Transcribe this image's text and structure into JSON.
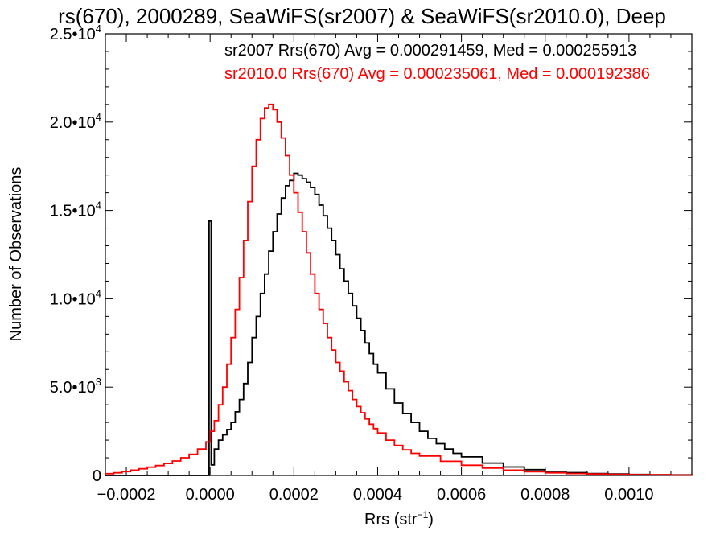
{
  "chart_data": {
    "type": "histogram-step",
    "title": "rs(670), 2000289, SeaWiFS(sr2007) & SeaWiFS(sr2010.0), Deep",
    "xlabel": "Rrs (str",
    "xlabel_sup": "−1",
    "xlabel_close": ")",
    "ylabel": "Number of Observations",
    "xlim": [
      -0.00025,
      0.00115
    ],
    "ylim": [
      0,
      25000
    ],
    "xticks": [
      -0.0002,
      0.0,
      0.0002,
      0.0004,
      0.0006,
      0.0008,
      0.001
    ],
    "xtick_labels": [
      "−0.0002",
      "0.0000",
      "0.0002",
      "0.0004",
      "0.0006",
      "0.0008",
      "0.0010"
    ],
    "yticks": [
      0,
      5000,
      10000,
      15000,
      20000,
      25000
    ],
    "ytick_labels": [
      {
        "base": "0",
        "exp": ""
      },
      {
        "base": "5.0•10",
        "exp": "3"
      },
      {
        "base": "1.0•10",
        "exp": "4"
      },
      {
        "base": "1.5•10",
        "exp": "4"
      },
      {
        "base": "2.0•10",
        "exp": "4"
      },
      {
        "base": "2.5•10",
        "exp": "4"
      }
    ],
    "grid": false,
    "legend_position": "top-right",
    "series": [
      {
        "name": "sr2007",
        "legend_text": "sr2007 Rrs(670) Avg = 0.000291459, Med = 0.000255913",
        "color": "#000000",
        "points": [
          [
            -0.00025,
            0
          ],
          [
            -2.5e-06,
            0
          ],
          [
            -2.5e-06,
            14400
          ],
          [
            2.5e-06,
            14400
          ],
          [
            2.5e-06,
            600
          ],
          [
            1e-05,
            1500
          ],
          [
            2e-05,
            2000
          ],
          [
            3e-05,
            2300
          ],
          [
            4e-05,
            2600
          ],
          [
            5e-05,
            3000
          ],
          [
            6e-05,
            3600
          ],
          [
            7e-05,
            4300
          ],
          [
            8e-05,
            5200
          ],
          [
            9e-05,
            6400
          ],
          [
            0.0001,
            7800
          ],
          [
            0.00011,
            9000
          ],
          [
            0.00012,
            10300
          ],
          [
            0.00013,
            11400
          ],
          [
            0.00014,
            12700
          ],
          [
            0.00015,
            13800
          ],
          [
            0.00016,
            14800
          ],
          [
            0.00017,
            15700
          ],
          [
            0.00018,
            16400
          ],
          [
            0.00019,
            16700
          ],
          [
            0.0002,
            17100
          ],
          [
            0.00021,
            17000
          ],
          [
            0.00022,
            16800
          ],
          [
            0.00023,
            16600
          ],
          [
            0.00024,
            16300
          ],
          [
            0.00025,
            15900
          ],
          [
            0.00026,
            15300
          ],
          [
            0.00027,
            14700
          ],
          [
            0.00028,
            14000
          ],
          [
            0.00029,
            13300
          ],
          [
            0.0003,
            12500
          ],
          [
            0.00031,
            11700
          ],
          [
            0.00032,
            11000
          ],
          [
            0.00033,
            10300
          ],
          [
            0.00034,
            9600
          ],
          [
            0.00035,
            8900
          ],
          [
            0.00036,
            8200
          ],
          [
            0.00037,
            7500
          ],
          [
            0.00038,
            6900
          ],
          [
            0.00039,
            6300
          ],
          [
            0.0004,
            5800
          ],
          [
            0.00042,
            4900
          ],
          [
            0.00044,
            4100
          ],
          [
            0.00046,
            3500
          ],
          [
            0.00048,
            3000
          ],
          [
            0.0005,
            2500
          ],
          [
            0.00052,
            2100
          ],
          [
            0.00054,
            1800
          ],
          [
            0.00056,
            1500
          ],
          [
            0.00058,
            1250
          ],
          [
            0.0006,
            1050
          ],
          [
            0.00065,
            700
          ],
          [
            0.0007,
            480
          ],
          [
            0.00075,
            330
          ],
          [
            0.0008,
            230
          ],
          [
            0.00085,
            160
          ],
          [
            0.0009,
            110
          ],
          [
            0.00095,
            80
          ],
          [
            0.001,
            55
          ],
          [
            0.00105,
            40
          ],
          [
            0.0011,
            30
          ],
          [
            0.00115,
            25
          ]
        ]
      },
      {
        "name": "sr2010.0",
        "legend_text": "sr2010.0 Rrs(670) Avg = 0.000235061, Med = 0.000192386",
        "color": "#ff0000",
        "points": [
          [
            -0.00025,
            100
          ],
          [
            -0.00023,
            150
          ],
          [
            -0.00021,
            220
          ],
          [
            -0.00019,
            300
          ],
          [
            -0.00017,
            380
          ],
          [
            -0.00015,
            470
          ],
          [
            -0.00013,
            560
          ],
          [
            -0.00011,
            680
          ],
          [
            -9e-05,
            820
          ],
          [
            -7e-05,
            1000
          ],
          [
            -5e-05,
            1200
          ],
          [
            -3e-05,
            1500
          ],
          [
            -1e-05,
            1900
          ],
          [
            0.0,
            2500
          ],
          [
            1e-05,
            3100
          ],
          [
            2e-05,
            4000
          ],
          [
            3e-05,
            5000
          ],
          [
            4e-05,
            6300
          ],
          [
            5e-05,
            7800
          ],
          [
            6e-05,
            9400
          ],
          [
            7e-05,
            11200
          ],
          [
            8e-05,
            13300
          ],
          [
            9e-05,
            15500
          ],
          [
            0.0001,
            17500
          ],
          [
            0.00011,
            19000
          ],
          [
            0.00012,
            20200
          ],
          [
            0.00013,
            20800
          ],
          [
            0.00014,
            21000
          ],
          [
            0.00015,
            20700
          ],
          [
            0.00016,
            20000
          ],
          [
            0.00017,
            19100
          ],
          [
            0.00018,
            18100
          ],
          [
            0.00019,
            17000
          ],
          [
            0.0002,
            16000
          ],
          [
            0.00021,
            14900
          ],
          [
            0.00022,
            13800
          ],
          [
            0.00023,
            12600
          ],
          [
            0.00024,
            11400
          ],
          [
            0.00025,
            10300
          ],
          [
            0.00026,
            9400
          ],
          [
            0.00027,
            8600
          ],
          [
            0.00028,
            7800
          ],
          [
            0.00029,
            7100
          ],
          [
            0.0003,
            6400
          ],
          [
            0.00031,
            5900
          ],
          [
            0.00032,
            5300
          ],
          [
            0.00033,
            4800
          ],
          [
            0.00034,
            4300
          ],
          [
            0.00035,
            3900
          ],
          [
            0.00036,
            3550
          ],
          [
            0.00037,
            3200
          ],
          [
            0.00038,
            2900
          ],
          [
            0.00039,
            2650
          ],
          [
            0.0004,
            2400
          ],
          [
            0.00042,
            2000
          ],
          [
            0.00044,
            1700
          ],
          [
            0.00046,
            1450
          ],
          [
            0.00048,
            1250
          ],
          [
            0.0005,
            1100
          ],
          [
            0.00055,
            800
          ],
          [
            0.0006,
            580
          ],
          [
            0.00065,
            420
          ],
          [
            0.0007,
            300
          ],
          [
            0.00075,
            210
          ],
          [
            0.0008,
            150
          ],
          [
            0.00085,
            110
          ],
          [
            0.0009,
            80
          ],
          [
            0.00095,
            60
          ],
          [
            0.001,
            45
          ],
          [
            0.00105,
            35
          ],
          [
            0.0011,
            25
          ],
          [
            0.00115,
            20
          ]
        ]
      }
    ]
  }
}
